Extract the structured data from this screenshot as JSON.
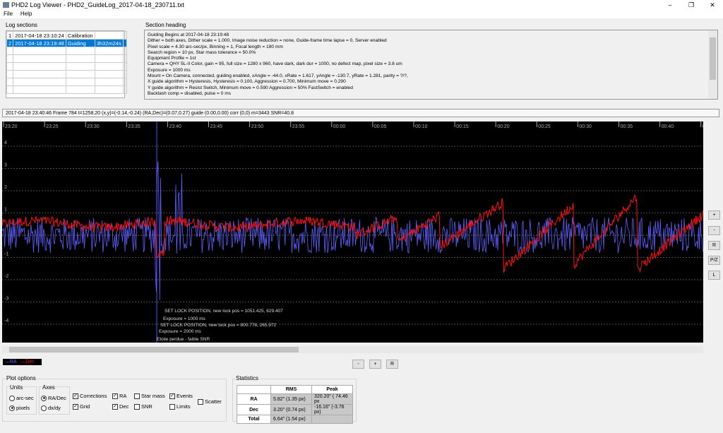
{
  "window": {
    "title": "PHD2 Log Viewer - PHD2_GuideLog_2017-04-18_230711.txt"
  },
  "menu": [
    "File",
    "Help"
  ],
  "log_sections": {
    "label": "Log sections",
    "rows": [
      [
        "1",
        "2017-04-18 23:10:24",
        "Calibration",
        ""
      ],
      [
        "2",
        "2017-04-18 23:19:48",
        "Guiding",
        "3h32m24s"
      ]
    ]
  },
  "section_heading": {
    "label": "Section heading",
    "lines": [
      "Guiding Begins at 2017-04-18 23:19:48",
      "Dither = both axes, Dither scale = 1.000, Image noise reduction = none, Guide-frame time lapse = 0, Server enabled",
      "Pixel scale = 4.30 arc-sec/px, Binning = 1, Focal length = 180 mm",
      "Search region = 10 px, Star mass tolerance = 50.0%",
      "Equipment Profile = 1st",
      "Camera = QHY 5L-II Color, gain = 95, full size = 1280 x 960, have dark, dark dur = 1000, no defect map, pixel size = 3.8 um",
      "Exposure = 1000 ms",
      "Mount = On Camera,  connected, guiding enabled, xAngle = -44.0, xRate = 1.617, yAngle = -130.7, yRate = 1.281, parity = ?/?,",
      "X guide algorithm = Hysteresis, Hysteresis = 0.100, Aggression = 0.700, Minimum move = 0.290",
      "Y guide algorithm = Resist Switch, Minimum move = 0.590 Aggression = 50% FastSwitch = enabled",
      "Backlash comp = disabled, pulse = 0 ms"
    ]
  },
  "status_line": "2017-04-18 23:40:46 Frame 784 t=1258.20 (x,y)=(-0.14,-0.24) (RA,Dec)=(0.07,0.27) guide (0.00,0.00) corr (0,0) m=3443 SNR=40.8",
  "plot": {
    "time_ticks": [
      "23:20",
      "23:25",
      "23:30",
      "23:35",
      "23:40",
      "23:45",
      "23:50",
      "23:55",
      "00:00",
      "00:05",
      "00:10",
      "00:15",
      "00:20",
      "00:25",
      "00:30",
      "00:35",
      "00:40",
      "00:45"
    ],
    "y_ticks": [
      "4",
      "3",
      "2",
      "1",
      "-1",
      "-2",
      "-3",
      "-4"
    ],
    "events": [
      "SET LOCK POSITION, new lock pos = 1051.425, 629.407",
      "Exposure = 1000 ms",
      "SET LOCK POSITION, new lock pos = 800.778, 265.972",
      "Exposure = 2000 ms",
      "Etoile perdue - faible SNR"
    ],
    "colors": {
      "ra": "#6060ff",
      "dec": "#ff1010"
    }
  },
  "side_buttons": [
    "+",
    "-",
    "R",
    "P/Z",
    "L"
  ],
  "bottom_buttons": [
    "-",
    "+",
    "R"
  ],
  "legend": {
    "ra": "RA",
    "dec": "Dec"
  },
  "plot_options": {
    "label": "Plot options",
    "units_label": "Units",
    "units": [
      "arc-sec",
      "pixels"
    ],
    "axes_label": "Axes",
    "axes": [
      "RA/Dec",
      "dx/dy"
    ],
    "checks": [
      {
        "label": "Corrections",
        "on": true
      },
      {
        "label": "Grid",
        "on": true
      },
      {
        "label": "RA",
        "on": true
      },
      {
        "label": "Dec",
        "on": true
      },
      {
        "label": "Star mass",
        "on": false
      },
      {
        "label": "SNR",
        "on": false
      },
      {
        "label": "Events",
        "on": true
      },
      {
        "label": "Limits",
        "on": false
      },
      {
        "label": "Scatter",
        "on": false
      }
    ]
  },
  "statistics": {
    "label": "Statistics",
    "headers": [
      "",
      "RMS",
      "Peak"
    ],
    "rows": [
      [
        "RA",
        "5.82\" (1.35 px)",
        "320.20\" ( 74.46 px"
      ],
      [
        "Dec",
        "3.20\" (0.74 px)",
        "-16.16\" (-3.76 px)"
      ],
      [
        "Total",
        "6.64\" (1.54 px)",
        ""
      ]
    ]
  }
}
